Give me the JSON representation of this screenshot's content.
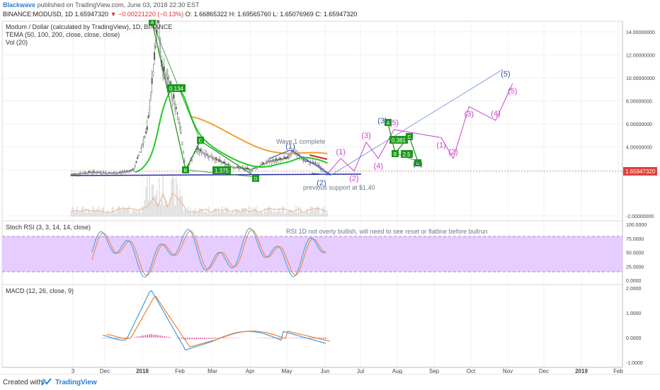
{
  "header": {
    "author": "Blackwave",
    "published": "published on TradingView.com, June 03, 2018 22:30 EST",
    "symbol": "BINANCE:MODUSD, 1D",
    "price": "1.65947320",
    "change": "▼ −0.00221220 (−0.13%)",
    "ohlc": "O: 1.66865322  H: 1.69565760  L: 1.65076969  C: 1.65947320"
  },
  "main_panel": {
    "title": "Modum / Dollar (calculated by TradingView), 1D, BINANCE",
    "indicator1": "TEMA (50, 100, 200, close, close, close)",
    "indicator2": "Vol (20)",
    "price_tag": "1.65947320",
    "annotation_wave": "Wave 1 complete",
    "annotation_support": "previous support at $1.40"
  },
  "rsi_panel": {
    "title": "Stoch RSI (3, 3, 14, 14, close)",
    "note": "RSI 1D not overly bullish, will need to see reset or flatline before bullrun"
  },
  "macd_panel": {
    "title": "MACD (12, 26, close, 9)"
  },
  "footer": {
    "created_with": "Created with",
    "brand": "TradingView"
  },
  "colors": {
    "candle": "#5a5a5a",
    "tema_green": "#22cc22",
    "tema_orange": "#f0a030",
    "projection": "#cc44cc",
    "wave_blue": "#3366cc",
    "rsi_band": "#e6ccff",
    "macd_line": "#3aa0e0",
    "signal_line": "#f08030",
    "hist": "#e040a0"
  },
  "chart_data": [
    {
      "type": "candlestick",
      "x_tick_labels": [
        "3",
        "Dec",
        "2018",
        "Feb",
        "Mar",
        "Apr",
        "May",
        "Jun",
        "Jul",
        "Aug",
        "Sep",
        "Oct",
        "Nov",
        "Dec",
        "2019",
        "Feb"
      ],
      "y_tick_labels": [
        "14.00000000",
        "12.00000000",
        "10.00000000",
        "8.00000000",
        "6.00000000",
        "4.00000000",
        "2.00000000",
        "-2.00000000"
      ],
      "ylim": [
        -3,
        15
      ],
      "price_close_series": [
        {
          "date": "2017-11-03",
          "close": 1.6
        },
        {
          "date": "2017-11-20",
          "close": 1.8
        },
        {
          "date": "2017-12-10",
          "close": 1.7
        },
        {
          "date": "2017-12-25",
          "close": 2.0
        },
        {
          "date": "2018-01-05",
          "close": 5.5
        },
        {
          "date": "2018-01-10",
          "close": 10.5
        },
        {
          "date": "2018-01-14",
          "close": 14.8
        },
        {
          "date": "2018-01-17",
          "close": 11.0
        },
        {
          "date": "2018-01-24",
          "close": 9.5
        },
        {
          "date": "2018-02-01",
          "close": 6.0
        },
        {
          "date": "2018-02-06",
          "close": 2.0
        },
        {
          "date": "2018-02-15",
          "close": 3.8
        },
        {
          "date": "2018-03-01",
          "close": 3.0
        },
        {
          "date": "2018-03-15",
          "close": 2.3
        },
        {
          "date": "2018-04-01",
          "close": 2.0
        },
        {
          "date": "2018-04-15",
          "close": 2.7
        },
        {
          "date": "2018-05-01",
          "close": 3.0
        },
        {
          "date": "2018-05-05",
          "close": 3.7
        },
        {
          "date": "2018-05-15",
          "close": 2.8
        },
        {
          "date": "2018-05-25",
          "close": 2.5
        },
        {
          "date": "2018-06-03",
          "close": 1.66
        }
      ],
      "projection_path": [
        {
          "label": "",
          "date": "2018-06-03",
          "y": 1.66
        },
        {
          "label": "(1)",
          "date": "2018-06-14",
          "y": 3.0
        },
        {
          "label": "(2)",
          "date": "2018-06-25",
          "y": 1.9
        },
        {
          "label": "(3)",
          "date": "2018-07-05",
          "y": 4.4
        },
        {
          "label": "(4)",
          "date": "2018-07-15",
          "y": 3.0
        },
        {
          "label": "(5)",
          "date": "2018-07-28",
          "y": 5.5
        },
        {
          "label": "(1)",
          "date": "2018-09-05",
          "y": 4.8
        },
        {
          "label": "(2)",
          "date": "2018-09-15",
          "y": 3.0
        },
        {
          "label": "(3)",
          "date": "2018-09-28",
          "y": 7.5
        },
        {
          "label": "(4)",
          "date": "2018-10-20",
          "y": 6.3
        },
        {
          "label": "(5)",
          "date": "2018-11-03",
          "y": 9.5
        }
      ],
      "pattern_labels": [
        "A",
        "B",
        "C",
        "D",
        "0.134",
        "1.375",
        "0.381",
        "2.5",
        "(1)",
        "(2)",
        "(3)",
        "(5)",
        "(D)"
      ]
    },
    {
      "type": "line",
      "name": "Stoch RSI",
      "y_tick_labels": [
        "100.0000",
        "75.0000",
        "50.0000",
        "25.0000",
        "0.0000"
      ],
      "ylim": [
        0,
        100
      ],
      "band": [
        20,
        80
      ]
    },
    {
      "type": "line",
      "name": "MACD",
      "y_tick_labels": [
        "2.0000",
        "1.0000",
        "0.0000",
        "-1.0000"
      ],
      "ylim": [
        -1.1,
        2.1
      ]
    }
  ]
}
